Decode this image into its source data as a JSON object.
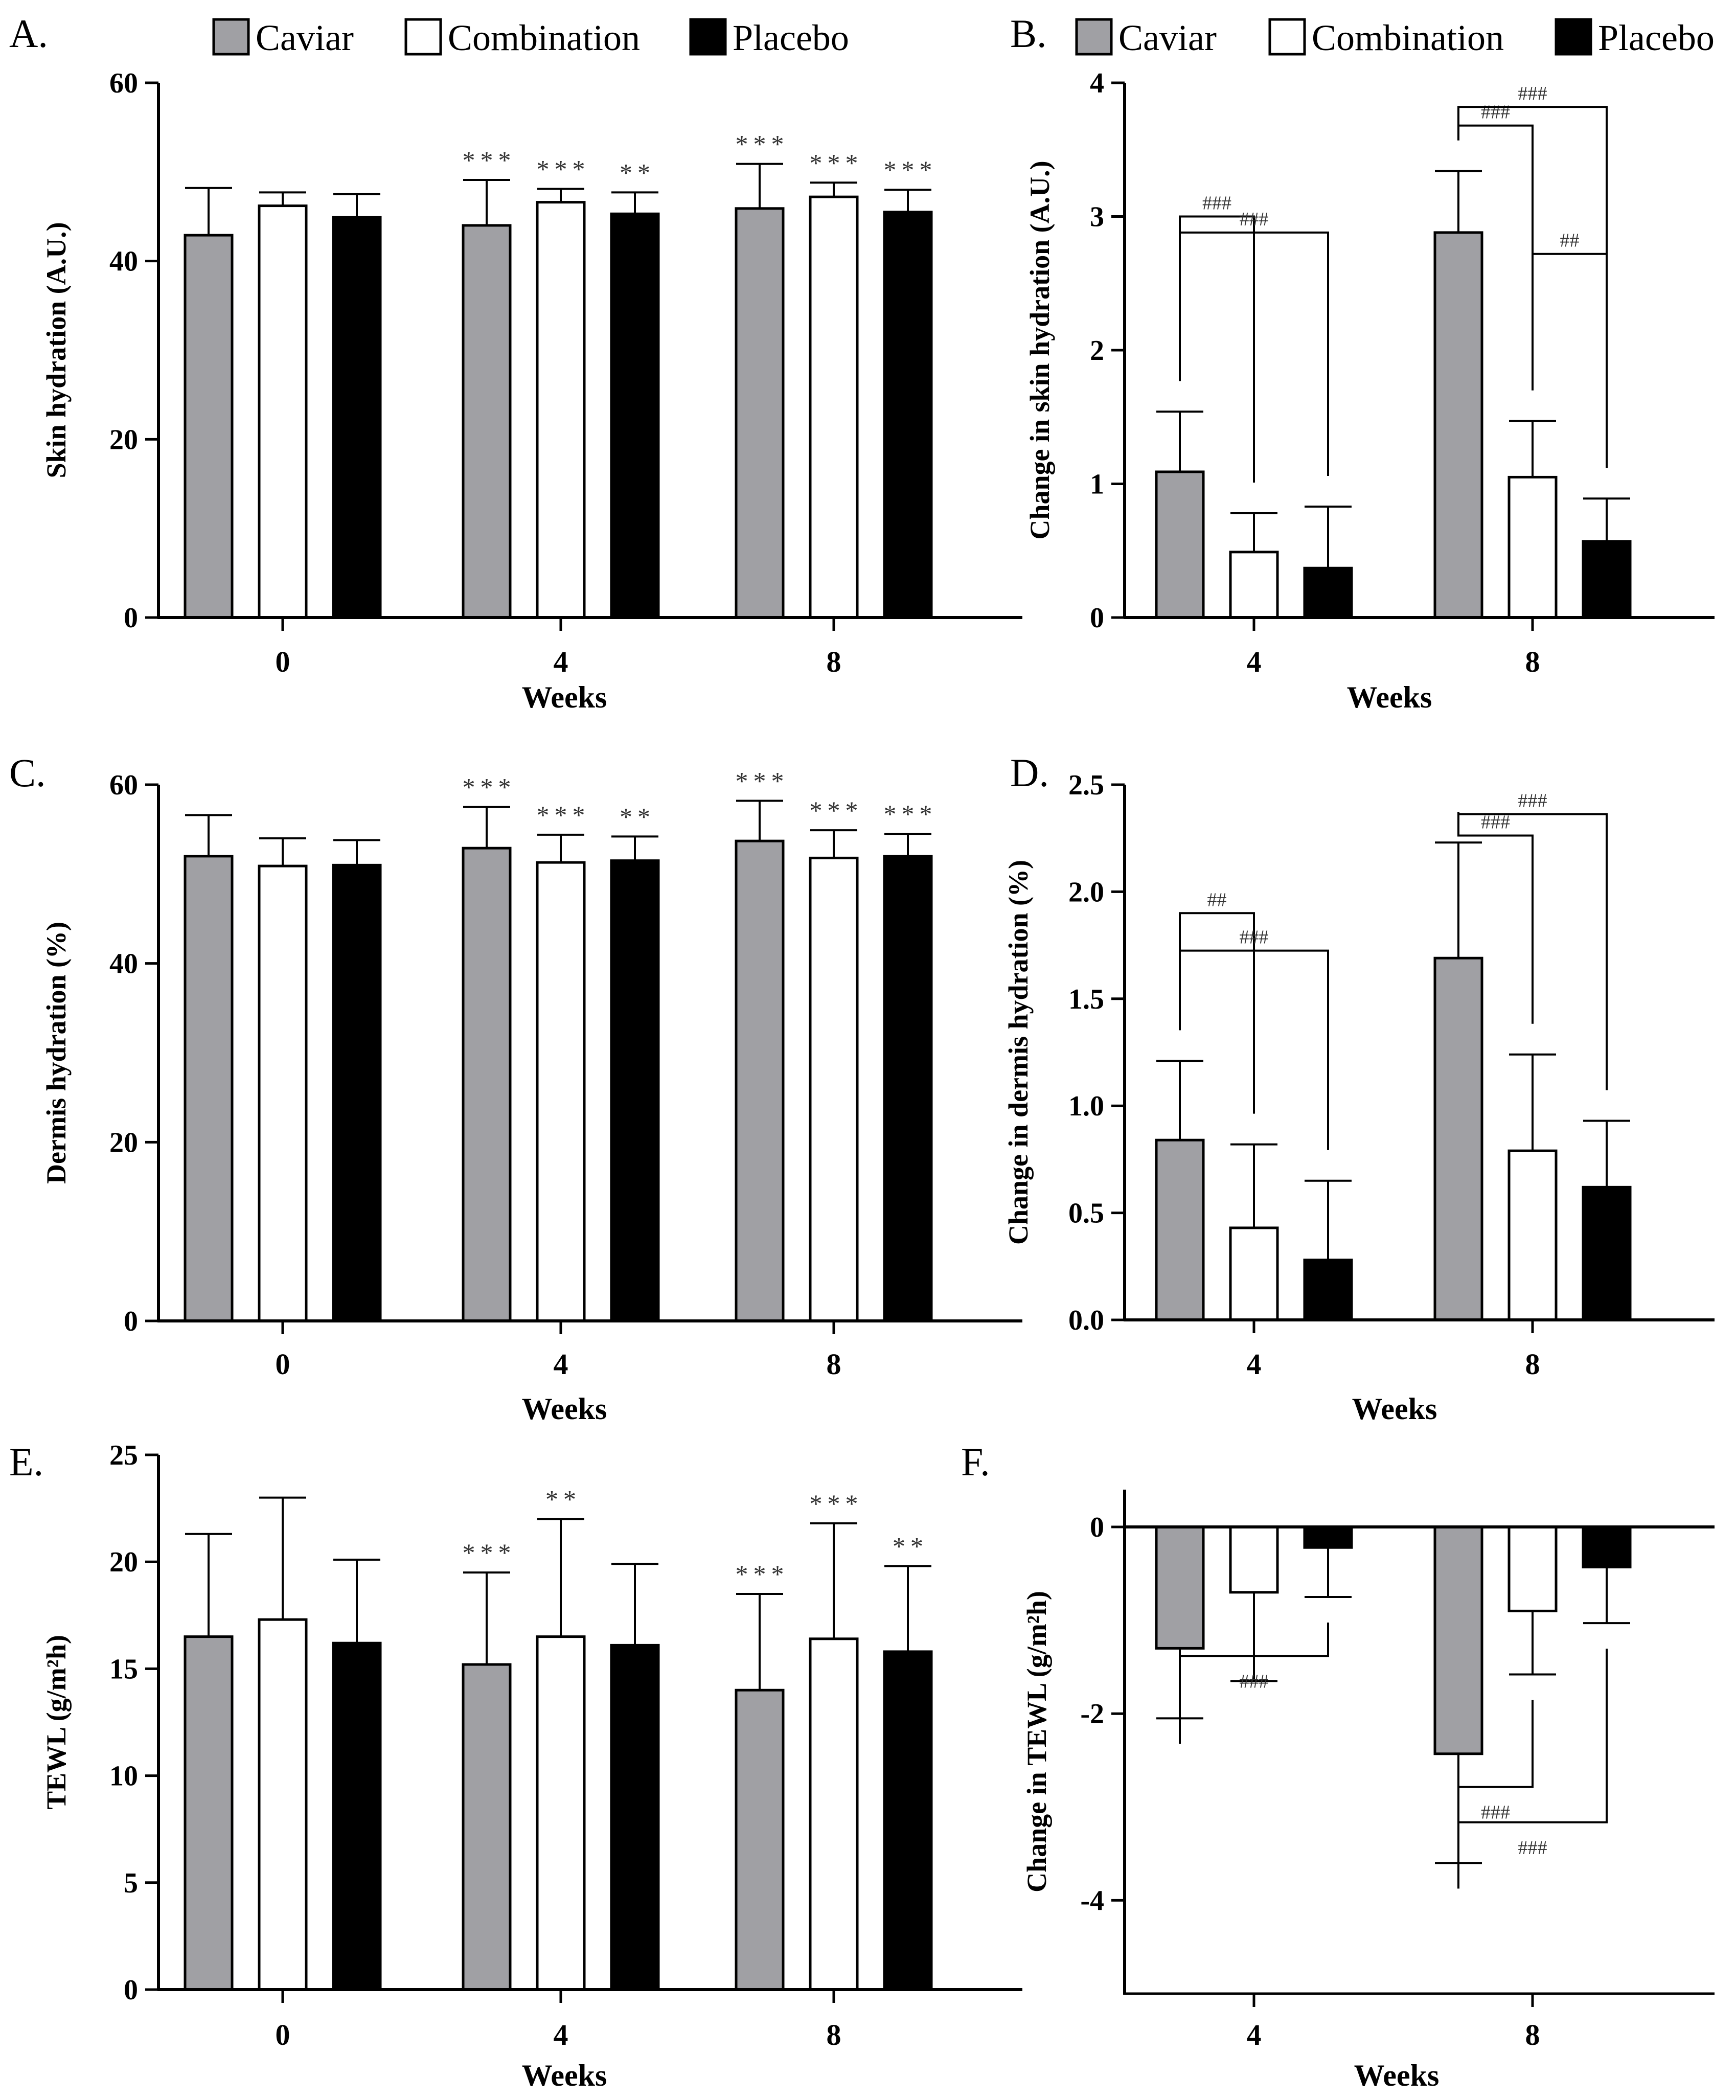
{
  "legend": {
    "A": [
      {
        "name": "Caviar",
        "color": "#a0a0a4"
      },
      {
        "name": "Combination",
        "color": "#ffffff"
      },
      {
        "name": "Placebo",
        "color": "#000000"
      }
    ],
    "B": [
      {
        "name": "Caviar",
        "color": "#a0a0a4"
      },
      {
        "name": "Combination",
        "color": "#ffffff"
      },
      {
        "name": "Placebo",
        "color": "#000000"
      }
    ]
  },
  "chart_data": [
    {
      "id": "A",
      "panel_label": "A.",
      "type": "bar",
      "categories": [
        "0",
        "4",
        "8"
      ],
      "xlabel": "Weeks",
      "ylabel": "Skin hydration (A.U.)",
      "ylim": [
        0,
        60
      ],
      "yticks": [
        0,
        20,
        40,
        60
      ],
      "ytick_labels": [
        "0",
        "20",
        "40",
        "60"
      ],
      "series": [
        {
          "name": "Caviar",
          "values": [
            42.9,
            44.0,
            45.9
          ],
          "errors": [
            5.3,
            5.1,
            5.0
          ]
        },
        {
          "name": "Combination",
          "values": [
            46.2,
            46.6,
            47.2
          ],
          "errors": [
            1.5,
            1.5,
            1.6
          ]
        },
        {
          "name": "Placebo",
          "values": [
            44.9,
            45.3,
            45.5
          ],
          "errors": [
            2.6,
            2.4,
            2.5
          ]
        }
      ],
      "significance": [
        {
          "series": "Caviar",
          "category": "4",
          "label": "***"
        },
        {
          "series": "Combination",
          "category": "4",
          "label": "***"
        },
        {
          "series": "Placebo",
          "category": "4",
          "label": "**"
        },
        {
          "series": "Caviar",
          "category": "8",
          "label": "***"
        },
        {
          "series": "Combination",
          "category": "8",
          "label": "***"
        },
        {
          "series": "Placebo",
          "category": "8",
          "label": "***"
        }
      ]
    },
    {
      "id": "B",
      "panel_label": "B.",
      "type": "bar",
      "categories": [
        "4",
        "8"
      ],
      "xlabel": "Weeks",
      "ylabel": "Change in skin hydration (A.U.)",
      "ylim": [
        0,
        4
      ],
      "yticks": [
        0,
        1,
        2,
        3,
        4
      ],
      "ytick_labels": [
        "0",
        "1",
        "2",
        "3",
        "4"
      ],
      "series": [
        {
          "name": "Caviar",
          "values": [
            1.09,
            2.88
          ],
          "errors": [
            0.45,
            0.46
          ]
        },
        {
          "name": "Combination",
          "values": [
            0.49,
            1.05
          ],
          "errors": [
            0.29,
            0.42
          ]
        },
        {
          "name": "Placebo",
          "values": [
            0.37,
            0.57
          ],
          "errors": [
            0.46,
            0.32
          ]
        }
      ],
      "brackets": [
        {
          "category": "4",
          "from": "Caviar",
          "to": "Combination",
          "label": "###"
        },
        {
          "category": "4",
          "from": "Caviar",
          "to": "Placebo",
          "label": "###"
        },
        {
          "category": "8",
          "from": "Caviar",
          "to": "Combination",
          "label": "###"
        },
        {
          "category": "8",
          "from": "Caviar",
          "to": "Placebo",
          "label": "###"
        },
        {
          "category": "8",
          "from": "Combination",
          "to": "Placebo",
          "label": "##"
        }
      ]
    },
    {
      "id": "C",
      "panel_label": "C.",
      "type": "bar",
      "categories": [
        "0",
        "4",
        "8"
      ],
      "xlabel": "Weeks",
      "ylabel": "Dermis hydration (%)",
      "ylim": [
        0,
        60
      ],
      "yticks": [
        0,
        20,
        40,
        60
      ],
      "ytick_labels": [
        "0",
        "20",
        "40",
        "60"
      ],
      "series": [
        {
          "name": "Caviar",
          "values": [
            52.0,
            52.9,
            53.7
          ],
          "errors": [
            4.6,
            4.6,
            4.5
          ]
        },
        {
          "name": "Combination",
          "values": [
            50.9,
            51.3,
            51.8
          ],
          "errors": [
            3.1,
            3.1,
            3.1
          ]
        },
        {
          "name": "Placebo",
          "values": [
            51.0,
            51.5,
            52.0
          ],
          "errors": [
            2.8,
            2.7,
            2.5
          ]
        }
      ],
      "significance": [
        {
          "series": "Caviar",
          "category": "4",
          "label": "***"
        },
        {
          "series": "Combination",
          "category": "4",
          "label": "***"
        },
        {
          "series": "Placebo",
          "category": "4",
          "label": "**"
        },
        {
          "series": "Caviar",
          "category": "8",
          "label": "***"
        },
        {
          "series": "Combination",
          "category": "8",
          "label": "***"
        },
        {
          "series": "Placebo",
          "category": "8",
          "label": "***"
        }
      ]
    },
    {
      "id": "D",
      "panel_label": "D.",
      "type": "bar",
      "categories": [
        "4",
        "8"
      ],
      "xlabel": "Weeks",
      "ylabel": "Change in dermis hydration (%)",
      "ylim": [
        0,
        2.5
      ],
      "yticks": [
        0,
        0.5,
        1,
        1.5,
        2,
        2.5
      ],
      "ytick_labels": [
        "0.0",
        "0.5",
        "1.0",
        "1.5",
        "2.0",
        "2.5"
      ],
      "series": [
        {
          "name": "Caviar",
          "values": [
            0.84,
            1.69
          ],
          "errors": [
            0.37,
            0.54
          ]
        },
        {
          "name": "Combination",
          "values": [
            0.43,
            0.79
          ],
          "errors": [
            0.39,
            0.45
          ]
        },
        {
          "name": "Placebo",
          "values": [
            0.28,
            0.62
          ],
          "errors": [
            0.37,
            0.31
          ]
        }
      ],
      "brackets": [
        {
          "category": "4",
          "from": "Caviar",
          "to": "Combination",
          "label": "##"
        },
        {
          "category": "4",
          "from": "Caviar",
          "to": "Placebo",
          "label": "###"
        },
        {
          "category": "8",
          "from": "Caviar",
          "to": "Combination",
          "label": "###"
        },
        {
          "category": "8",
          "from": "Caviar",
          "to": "Placebo",
          "label": "###"
        }
      ]
    },
    {
      "id": "E",
      "panel_label": "E.",
      "type": "bar",
      "categories": [
        "0",
        "4",
        "8"
      ],
      "xlabel": "Weeks",
      "ylabel": "TEWL  (g/m²h)",
      "ylim": [
        0,
        25
      ],
      "yticks": [
        0,
        5,
        10,
        15,
        20,
        25
      ],
      "ytick_labels": [
        "0",
        "5",
        "10",
        "15",
        "20",
        "25"
      ],
      "series": [
        {
          "name": "Caviar",
          "values": [
            16.5,
            15.2,
            14.0
          ],
          "errors": [
            4.8,
            4.3,
            4.5
          ]
        },
        {
          "name": "Combination",
          "values": [
            17.3,
            16.5,
            16.4
          ],
          "errors": [
            5.7,
            5.5,
            5.4
          ]
        },
        {
          "name": "Placebo",
          "values": [
            16.2,
            16.1,
            15.8
          ],
          "errors": [
            3.9,
            3.8,
            4.0
          ]
        }
      ],
      "significance": [
        {
          "series": "Caviar",
          "category": "4",
          "label": "***"
        },
        {
          "series": "Combination",
          "category": "4",
          "label": "**"
        },
        {
          "series": "Caviar",
          "category": "8",
          "label": "***"
        },
        {
          "series": "Combination",
          "category": "8",
          "label": "***"
        },
        {
          "series": "Placebo",
          "category": "8",
          "label": "**"
        }
      ]
    },
    {
      "id": "F",
      "panel_label": "F.",
      "type": "bar",
      "categories": [
        "4",
        "8"
      ],
      "xlabel": "Weeks",
      "ylabel": "Change in TEWL  (g/m²h)",
      "ylim": [
        -5,
        0.4
      ],
      "yticks": [
        -4,
        -2,
        0
      ],
      "ytick_labels": [
        "-4",
        "-2",
        "0"
      ],
      "series": [
        {
          "name": "Caviar",
          "values": [
            -1.3,
            -2.43
          ],
          "errors": [
            0.75,
            1.17
          ]
        },
        {
          "name": "Combination",
          "values": [
            -0.7,
            -0.9
          ],
          "errors": [
            0.95,
            0.68
          ]
        },
        {
          "name": "Placebo",
          "values": [
            -0.22,
            -0.43
          ],
          "errors": [
            0.53,
            0.6
          ]
        }
      ],
      "brackets": [
        {
          "category": "4",
          "from": "Caviar",
          "to": "Placebo",
          "label": "###"
        },
        {
          "category": "8",
          "from": "Caviar",
          "to": "Combination",
          "label": "###"
        },
        {
          "category": "8",
          "from": "Caviar",
          "to": "Placebo",
          "label": "###"
        }
      ]
    }
  ]
}
